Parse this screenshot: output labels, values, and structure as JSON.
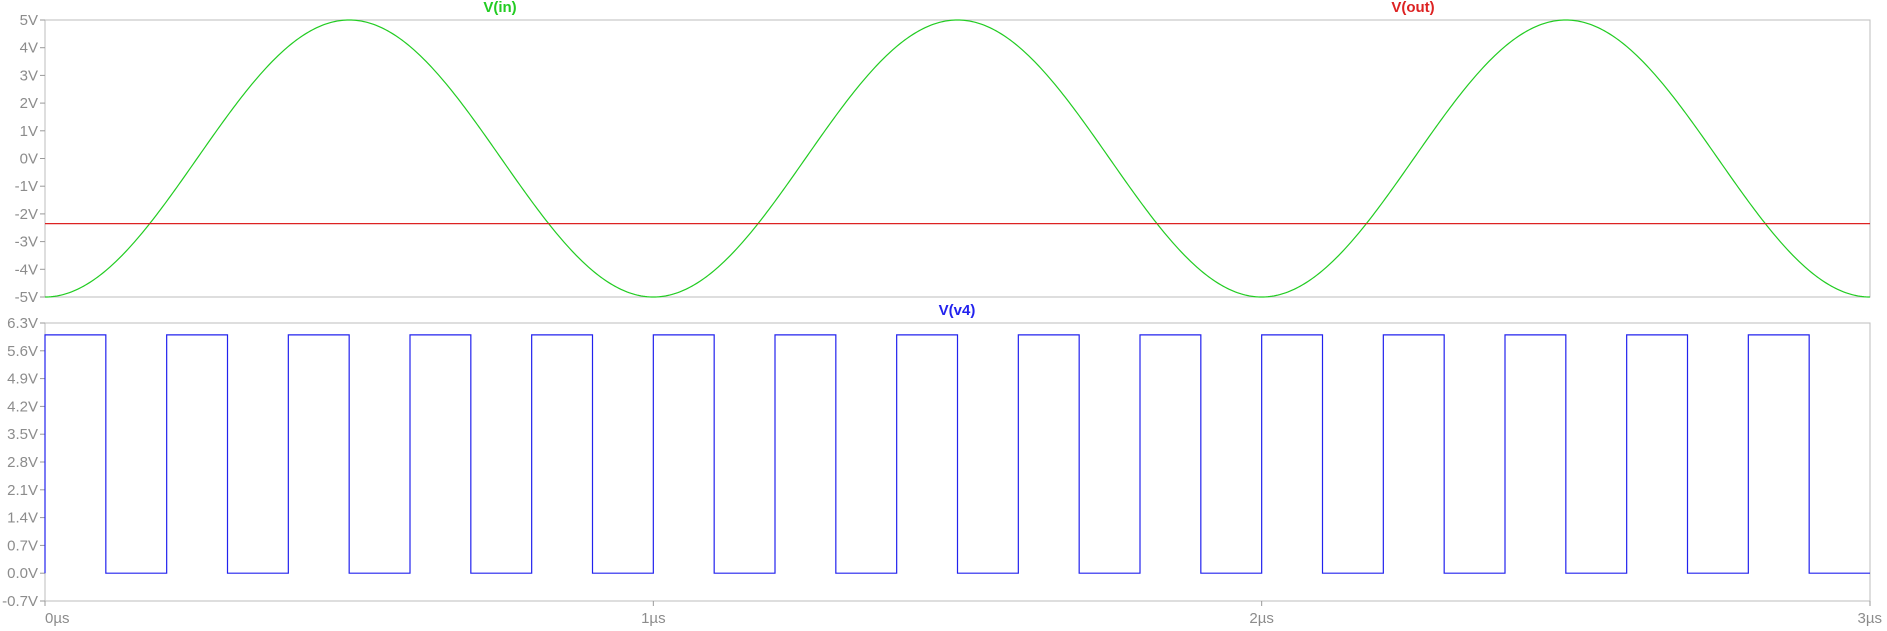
{
  "chart_data": [
    {
      "type": "line",
      "pane": "top",
      "x_unit": "µs",
      "x_ticks": [
        "0µs",
        "1µs",
        "2µs",
        "3µs"
      ],
      "x_range": [
        0,
        3
      ],
      "y_ticks": [
        "5V",
        "4V",
        "3V",
        "2V",
        "1V",
        "0V",
        "-1V",
        "-2V",
        "-3V",
        "-4V",
        "-5V"
      ],
      "y_range": [
        -5,
        5
      ],
      "grid": false,
      "series": [
        {
          "name": "V(in)",
          "color": "#22cc22",
          "kind": "sine",
          "amplitude": 5,
          "period_us": 1,
          "x": [
            0,
            0.25,
            0.5,
            0.75,
            1.0,
            1.25,
            1.5,
            1.75,
            2.0,
            2.25,
            2.5,
            2.75,
            3.0
          ],
          "y": [
            -5,
            0,
            5,
            0,
            -5,
            0,
            5,
            0,
            -5,
            0,
            5,
            0,
            -5
          ]
        },
        {
          "name": "V(out)",
          "color": "#dd2222",
          "kind": "constant",
          "x": [
            0,
            3
          ],
          "y": [
            -2.35,
            -2.35
          ]
        }
      ]
    },
    {
      "type": "line",
      "pane": "bottom",
      "x_unit": "µs",
      "x_ticks": [
        "0µs",
        "1µs",
        "2µs",
        "3µs"
      ],
      "x_range": [
        0,
        3
      ],
      "y_ticks": [
        "6.3V",
        "5.6V",
        "4.9V",
        "4.2V",
        "3.5V",
        "2.8V",
        "2.1V",
        "1.4V",
        "0.7V",
        "0.0V",
        "-0.7V"
      ],
      "y_range": [
        -0.7,
        6.3
      ],
      "grid": false,
      "series": [
        {
          "name": "V(v4)",
          "color": "#2222ee",
          "kind": "square",
          "high": 6.0,
          "low": 0.0,
          "rise_times_us": [
            0,
            0.2,
            0.4,
            0.6,
            0.8,
            1.0,
            1.2,
            1.4,
            1.6,
            1.8,
            2.0,
            2.2,
            2.4,
            2.6,
            2.8
          ],
          "fall_times_us": [
            0.1,
            0.3,
            0.5,
            0.7,
            0.9,
            1.1,
            1.3,
            1.5,
            1.7,
            1.9,
            2.1,
            2.3,
            2.5,
            2.7,
            2.9
          ]
        }
      ]
    }
  ]
}
